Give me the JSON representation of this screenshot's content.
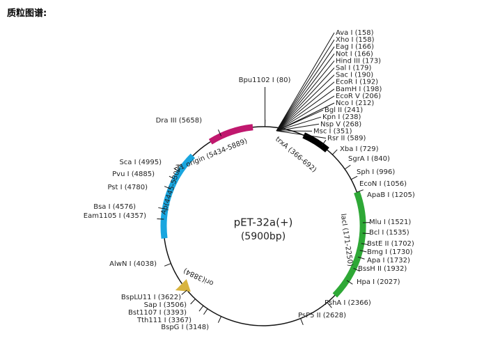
{
  "header": {
    "title": "质粒图谱:"
  },
  "plasmid": {
    "name": "pET-32a(+)",
    "size": "(5900bp)"
  },
  "features": [
    {
      "label": "f1 origin (5434-5889)"
    },
    {
      "label": "trxA (366-692)"
    },
    {
      "label": "Ap(4445-5302)"
    },
    {
      "label": "lacI (171-2250)"
    },
    {
      "label": "ori(3884)"
    }
  ],
  "sites": [
    "Ava I (158)",
    "Xho I (158)",
    "Eag I (166)",
    "Not I (166)",
    "Hind III (173)",
    "Sal I (179)",
    "Sac I (190)",
    "EcoR I (192)",
    "BamH I (198)",
    "EcoR V (206)",
    "Nco I (212)",
    "Bgl II (241)",
    "Kpn I (238)",
    "Nsp V (268)",
    "Msc I (351)",
    "Rsr II (589)",
    "Xba I (729)",
    "SgrA I (840)",
    "Sph I (996)",
    "EcoN I (1056)",
    "ApaB I (1205)",
    "Mlu I (1521)",
    "Bcl I (1535)",
    "BstE II (1702)",
    "Bmg I (1730)",
    "Apa I (1732)",
    "BssH II (1932)",
    "Hpa I (2027)",
    "PshA I (2366)",
    "PsP5 II (2628)",
    "Bpu1102 I (80)",
    "Dra III (5658)",
    "Sca I (4995)",
    "Pvu I (4885)",
    "Pst I (4780)",
    "Bsa I (4576)",
    "Eam1105 I (4357)",
    "AlwN I (4038)",
    "BspLU11 I (3622)",
    "Sap I (3506)",
    "Bst1107 I (3393)",
    "Tth111 I (3367)",
    "BspG I (3148)"
  ]
}
